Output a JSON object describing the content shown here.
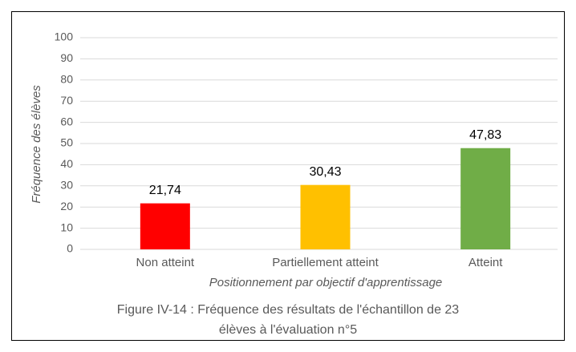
{
  "chart_data": {
    "type": "bar",
    "categories": [
      "Non atteint",
      "Partiellement atteint",
      "Atteint"
    ],
    "values": [
      21.74,
      30.43,
      47.83
    ],
    "value_labels": [
      "21,74",
      "30,43",
      "47,83"
    ],
    "colors": [
      "#ff0000",
      "#ffc000",
      "#70ad47"
    ],
    "xlabel": "Positionnement par objectif d'apprentissage",
    "ylabel": "Fréquence des élèves",
    "caption": [
      "Figure IV-14 : Fréquence des résultats de l'échantillon de 23",
      "élèves à l'évaluation n°5"
    ],
    "ylim": [
      0,
      100
    ],
    "yticks": [
      0,
      10,
      20,
      30,
      40,
      50,
      60,
      70,
      80,
      90,
      100
    ],
    "grid": true
  }
}
